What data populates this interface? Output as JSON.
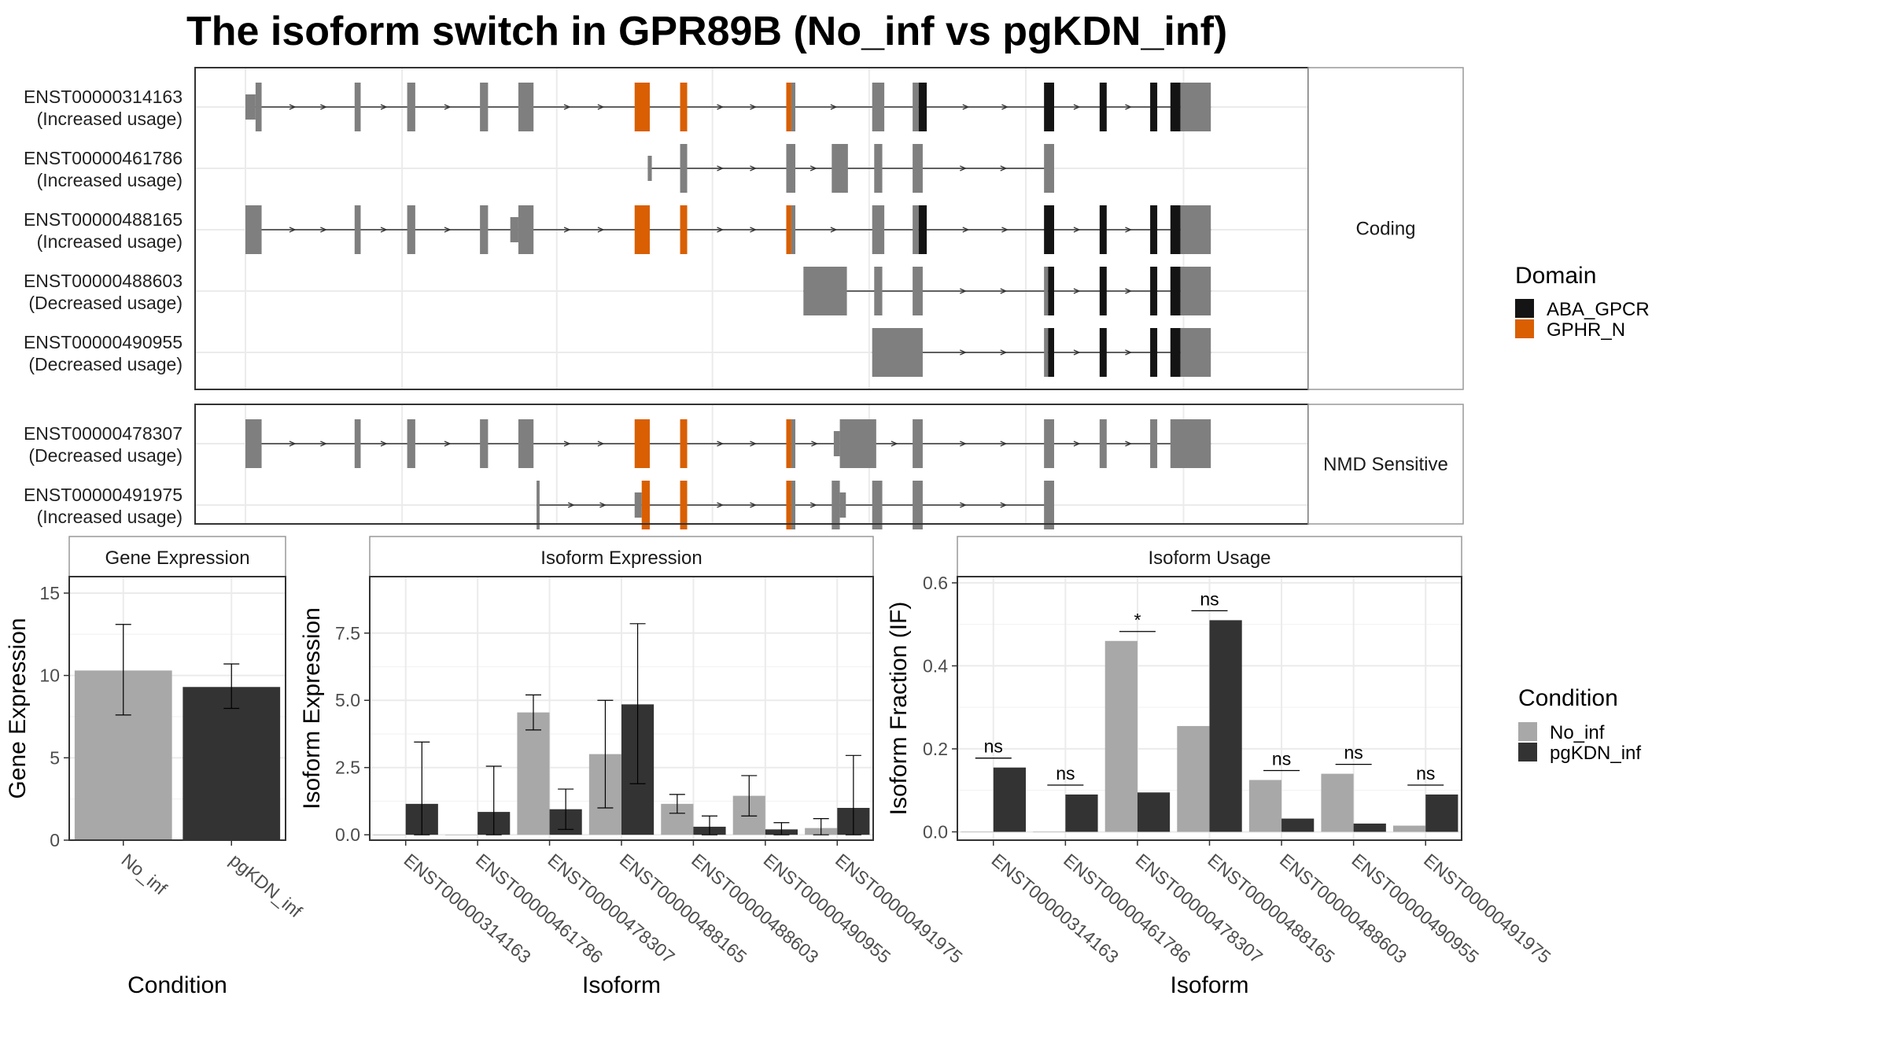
{
  "title": "The isoform switch in GPR89B (No_inf vs pgKDN_inf)",
  "colors": {
    "exon": "#7f7f7f",
    "ABA_GPCR": "#141414",
    "GPHR_N": "#d95f02",
    "No_inf": "#a8a8a8",
    "pgKDN_inf": "#333333",
    "panel_border": "#333333",
    "grid": "#ebebeb",
    "strip_border": "#999999"
  },
  "structure": {
    "groups": [
      {
        "label": "Coding",
        "isoforms": [
          {
            "id": "ENST00000314163",
            "change": "(Increased usage)",
            "start": 0,
            "end": 1000,
            "exons": [
              [
                0,
                10,
                "thin"
              ],
              [
                10,
                16,
                "thick"
              ],
              [
                108,
                114,
                "thick"
              ],
              [
                160,
                168,
                "thick"
              ],
              [
                232,
                240,
                "thick"
              ],
              [
                270,
                285,
                "thick"
              ],
              [
                385,
                400,
                "GPHR_N"
              ],
              [
                430,
                437,
                "GPHR_N"
              ],
              [
                535,
                540,
                "GPHR_N"
              ],
              [
                540,
                544,
                "thick"
              ],
              [
                620,
                632,
                "thick"
              ],
              [
                660,
                666,
                "thick"
              ],
              [
                666,
                674,
                "ABA_GPCR"
              ],
              [
                790,
                800,
                "ABA_GPCR"
              ],
              [
                845,
                852,
                "ABA_GPCR"
              ],
              [
                895,
                902,
                "ABA_GPCR"
              ],
              [
                915,
                925,
                "ABA_GPCR"
              ],
              [
                925,
                955,
                "thick"
              ]
            ]
          },
          {
            "id": "ENST00000461786",
            "change": "(Increased usage)",
            "start": 400,
            "end": 800,
            "exons": [
              [
                398,
                402,
                "thin"
              ],
              [
                430,
                437,
                "thick"
              ],
              [
                535,
                544,
                "thick"
              ],
              [
                580,
                596,
                "thick"
              ],
              [
                622,
                630,
                "thick"
              ],
              [
                660,
                670,
                "thick"
              ],
              [
                790,
                800,
                "thick"
              ]
            ]
          },
          {
            "id": "ENST00000488165",
            "change": "(Increased usage)",
            "start": 0,
            "end": 1000,
            "exons": [
              [
                0,
                16,
                "thick"
              ],
              [
                108,
                114,
                "thick"
              ],
              [
                160,
                168,
                "thick"
              ],
              [
                232,
                240,
                "thick"
              ],
              [
                262,
                270,
                "thin"
              ],
              [
                270,
                285,
                "thick"
              ],
              [
                385,
                400,
                "GPHR_N"
              ],
              [
                430,
                437,
                "GPHR_N"
              ],
              [
                535,
                540,
                "GPHR_N"
              ],
              [
                540,
                544,
                "thick"
              ],
              [
                620,
                632,
                "thick"
              ],
              [
                660,
                666,
                "thick"
              ],
              [
                666,
                674,
                "ABA_GPCR"
              ],
              [
                790,
                800,
                "ABA_GPCR"
              ],
              [
                845,
                852,
                "ABA_GPCR"
              ],
              [
                895,
                902,
                "ABA_GPCR"
              ],
              [
                915,
                925,
                "ABA_GPCR"
              ],
              [
                925,
                955,
                "thick"
              ]
            ]
          },
          {
            "id": "ENST00000488603",
            "change": "(Decreased usage)",
            "start": 670,
            "end": 1000,
            "exons": [
              [
                552,
                595,
                "thick"
              ],
              [
                622,
                630,
                "thick"
              ],
              [
                660,
                670,
                "thick"
              ],
              [
                790,
                794,
                "thick"
              ],
              [
                794,
                800,
                "ABA_GPCR"
              ],
              [
                845,
                852,
                "ABA_GPCR"
              ],
              [
                895,
                902,
                "ABA_GPCR"
              ],
              [
                915,
                925,
                "ABA_GPCR"
              ],
              [
                925,
                955,
                "thick"
              ]
            ]
          },
          {
            "id": "ENST00000490955",
            "change": "(Decreased usage)",
            "start": 670,
            "end": 1000,
            "exons": [
              [
                620,
                670,
                "thick"
              ],
              [
                790,
                794,
                "thick"
              ],
              [
                794,
                800,
                "ABA_GPCR"
              ],
              [
                845,
                852,
                "ABA_GPCR"
              ],
              [
                895,
                902,
                "ABA_GPCR"
              ],
              [
                915,
                925,
                "ABA_GPCR"
              ],
              [
                925,
                955,
                "thick"
              ]
            ]
          }
        ]
      },
      {
        "label": "NMD Sensitive",
        "isoforms": [
          {
            "id": "ENST00000478307",
            "change": "(Decreased usage)",
            "start": 0,
            "end": 1000,
            "exons": [
              [
                0,
                16,
                "thick"
              ],
              [
                108,
                114,
                "thick"
              ],
              [
                160,
                168,
                "thick"
              ],
              [
                232,
                240,
                "thick"
              ],
              [
                270,
                285,
                "thick"
              ],
              [
                385,
                400,
                "GPHR_N"
              ],
              [
                430,
                437,
                "GPHR_N"
              ],
              [
                535,
                540,
                "GPHR_N"
              ],
              [
                540,
                544,
                "thick"
              ],
              [
                582,
                588,
                "thin"
              ],
              [
                588,
                624,
                "thick"
              ],
              [
                660,
                670,
                "thick"
              ],
              [
                790,
                800,
                "thick"
              ],
              [
                845,
                852,
                "thick"
              ],
              [
                895,
                902,
                "thick"
              ],
              [
                915,
                955,
                "thick"
              ]
            ]
          },
          {
            "id": "ENST00000491975",
            "change": "(Increased usage)",
            "start": 300,
            "end": 800,
            "exons": [
              [
                288,
                291,
                "thick"
              ],
              [
                385,
                392,
                "thin"
              ],
              [
                392,
                400,
                "GPHR_N"
              ],
              [
                430,
                437,
                "GPHR_N"
              ],
              [
                535,
                540,
                "GPHR_N"
              ],
              [
                540,
                544,
                "thick"
              ],
              [
                580,
                588,
                "thick"
              ],
              [
                588,
                594,
                "thin"
              ],
              [
                620,
                630,
                "thick"
              ],
              [
                660,
                670,
                "thick"
              ],
              [
                790,
                800,
                "thick"
              ]
            ]
          }
        ]
      }
    ]
  },
  "legend_domain": {
    "title": "Domain",
    "items": [
      {
        "label": "ABA_GPCR",
        "color": "#141414"
      },
      {
        "label": "GPHR_N",
        "color": "#d95f02"
      }
    ]
  },
  "legend_condition": {
    "title": "Condition",
    "items": [
      {
        "label": "No_inf",
        "color": "#a8a8a8"
      },
      {
        "label": "pgKDN_inf",
        "color": "#333333"
      }
    ]
  },
  "chart_data": [
    {
      "type": "bar",
      "title": "Gene Expression",
      "xlabel": "Condition",
      "ylabel": "Gene Expression",
      "ylim": [
        0,
        16
      ],
      "yticks": [
        0,
        5,
        10,
        15
      ],
      "categories": [
        "No_inf",
        "pgKDN_inf"
      ],
      "values": [
        10.3,
        9.3
      ],
      "errors": [
        [
          7.6,
          13.1
        ],
        [
          8.0,
          10.7
        ]
      ],
      "colors": [
        "#a8a8a8",
        "#333333"
      ]
    },
    {
      "type": "bar",
      "title": "Isoform Expression",
      "xlabel": "Isoform",
      "ylabel": "Isoform Expression",
      "ylim": [
        -0.2,
        9.6
      ],
      "yticks": [
        0.0,
        2.5,
        5.0,
        7.5
      ],
      "ytick_labels": [
        "0.0",
        "2.5",
        "5.0",
        "7.5"
      ],
      "categories": [
        "ENST00000314163",
        "ENST00000461786",
        "ENST00000478307",
        "ENST00000488165",
        "ENST00000488603",
        "ENST00000490955",
        "ENST00000491975"
      ],
      "series": [
        {
          "name": "No_inf",
          "values": [
            0.0,
            0.0,
            4.55,
            3.0,
            1.15,
            1.45,
            0.25
          ],
          "errors": [
            null,
            null,
            [
              3.9,
              5.2
            ],
            [
              1.0,
              5.0
            ],
            [
              0.8,
              1.5
            ],
            [
              0.7,
              2.2
            ],
            [
              0.0,
              0.6
            ]
          ]
        },
        {
          "name": "pgKDN_inf",
          "values": [
            1.15,
            0.85,
            0.95,
            4.85,
            0.3,
            0.2,
            1.0
          ],
          "errors": [
            [
              0.0,
              3.45
            ],
            [
              0.0,
              2.55
            ],
            [
              0.2,
              1.7
            ],
            [
              1.9,
              7.85
            ],
            [
              0.0,
              0.7
            ],
            [
              0.0,
              0.45
            ],
            [
              0.0,
              2.95
            ]
          ]
        }
      ]
    },
    {
      "type": "bar",
      "title": "Isoform Usage",
      "xlabel": "Isoform",
      "ylabel": "Isoform Fraction (IF)",
      "ylim": [
        -0.02,
        0.615
      ],
      "yticks": [
        0.0,
        0.2,
        0.4,
        0.6
      ],
      "ytick_labels": [
        "0.0",
        "0.2",
        "0.4",
        "0.6"
      ],
      "categories": [
        "ENST00000314163",
        "ENST00000461786",
        "ENST00000478307",
        "ENST00000488165",
        "ENST00000488603",
        "ENST00000490955",
        "ENST00000491975"
      ],
      "series": [
        {
          "name": "No_inf",
          "values": [
            0.0,
            0.0,
            0.46,
            0.255,
            0.125,
            0.14,
            0.015
          ]
        },
        {
          "name": "pgKDN_inf",
          "values": [
            0.155,
            0.09,
            0.095,
            0.51,
            0.032,
            0.02,
            0.09
          ]
        }
      ],
      "significance": [
        "ns",
        "ns",
        "*",
        "ns",
        "ns",
        "ns",
        "ns"
      ]
    }
  ]
}
